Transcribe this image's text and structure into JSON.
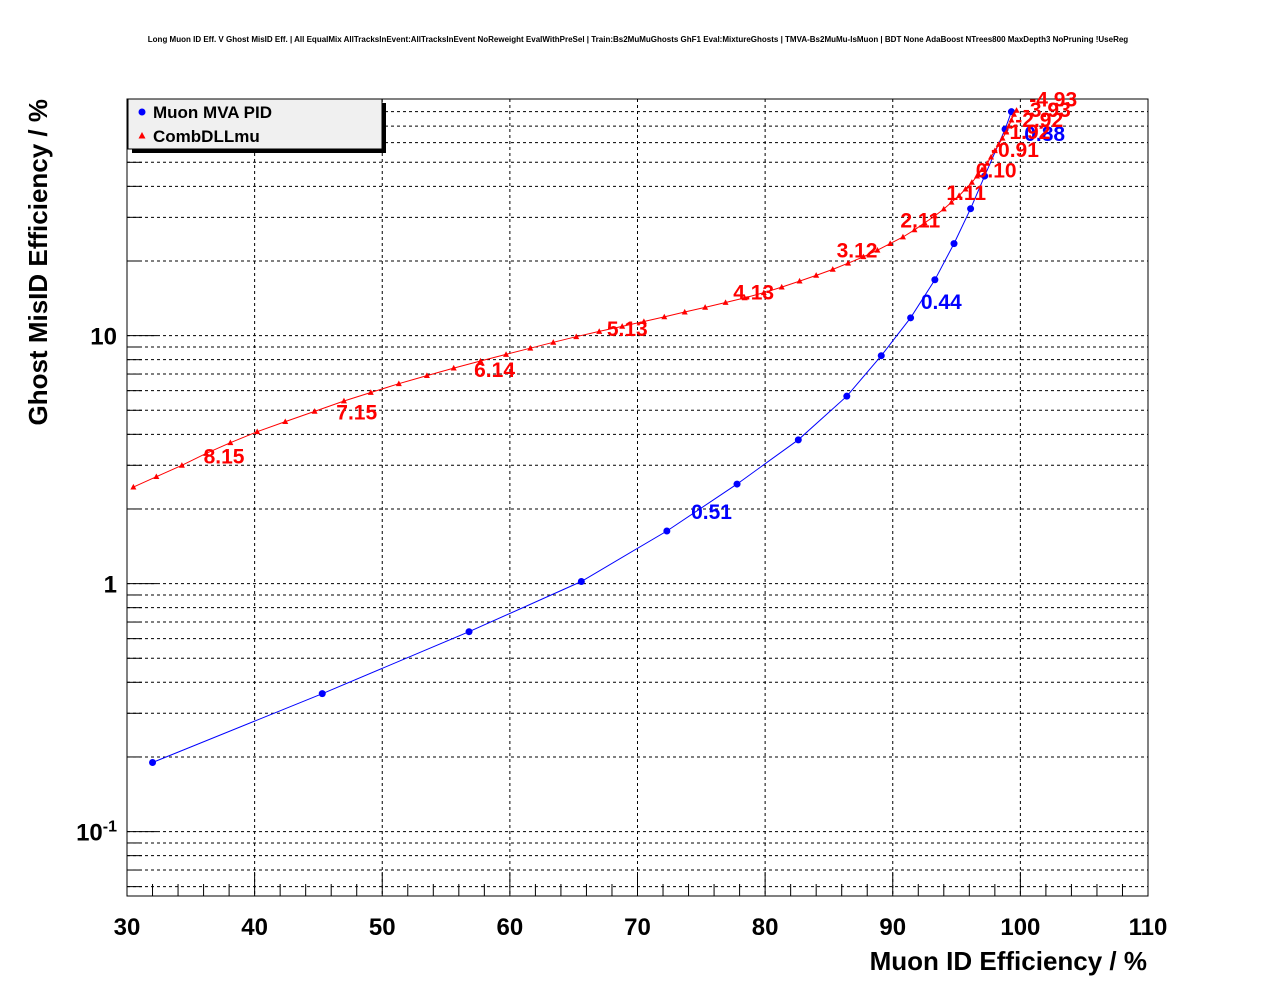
{
  "chart_data": {
    "type": "line",
    "title": "Long Muon ID Eff. V Ghost MisID Eff. | All EqualMix AllTracksInEvent:AllTracksInEvent NoReweight EvalWithPreSel | Train:Bs2MuMuGhosts GhF1 Eval:MixtureGhosts | TMVA-Bs2MuMu-IsMuon | BDT None AdaBoost NTrees800 MaxDepth3 NoPruning !UseReg",
    "xlabel": "Muon ID Efficiency / %",
    "ylabel": "Ghost MisID Efficiency / %",
    "xlim": [
      30,
      110
    ],
    "ylim": [
      0.055,
      90
    ],
    "yscale": "log",
    "grid": true,
    "legend_position": "top-left",
    "x_ticks": [
      "30",
      "40",
      "50",
      "60",
      "70",
      "80",
      "90",
      "100",
      "110"
    ],
    "y_ticks": [
      {
        "value": 0.1,
        "base": "10",
        "exp": "-1"
      },
      {
        "value": 1,
        "base": "1",
        "exp": ""
      },
      {
        "value": 10,
        "base": "10",
        "exp": ""
      }
    ],
    "series": [
      {
        "name": "Muon MVA PID",
        "color": "#0000ff",
        "marker": "circle",
        "points": [
          [
            32.0,
            0.19
          ],
          [
            45.3,
            0.36
          ],
          [
            56.8,
            0.64
          ],
          [
            65.6,
            1.02
          ],
          [
            72.3,
            1.63
          ],
          [
            77.8,
            2.52
          ],
          [
            82.6,
            3.8
          ],
          [
            86.4,
            5.7
          ],
          [
            89.1,
            8.3
          ],
          [
            91.4,
            11.8
          ],
          [
            93.3,
            16.8
          ],
          [
            94.8,
            23.5
          ],
          [
            96.1,
            32.5
          ],
          [
            97.2,
            44.0
          ],
          [
            98.8,
            68.0
          ],
          [
            99.3,
            80.0
          ]
        ],
        "labels": [
          {
            "text": "0.51",
            "x": 74.2,
            "y": 1.82
          },
          {
            "text": "0.44",
            "x": 92.2,
            "y": 12.8
          },
          {
            "text": "0.88",
            "x": 100.3,
            "y": 61.0
          }
        ]
      },
      {
        "name": "CombDLLmu",
        "color": "#ff0000",
        "marker": "triangle",
        "points": [
          [
            30.5,
            2.45
          ],
          [
            32.3,
            2.7
          ],
          [
            34.3,
            3.0
          ],
          [
            36.2,
            3.35
          ],
          [
            38.1,
            3.7
          ],
          [
            40.2,
            4.1
          ],
          [
            42.4,
            4.5
          ],
          [
            44.7,
            4.95
          ],
          [
            47.0,
            5.45
          ],
          [
            49.1,
            5.9
          ],
          [
            51.3,
            6.4
          ],
          [
            53.5,
            6.9
          ],
          [
            55.6,
            7.4
          ],
          [
            57.7,
            7.9
          ],
          [
            59.7,
            8.4
          ],
          [
            61.6,
            8.9
          ],
          [
            63.4,
            9.4
          ],
          [
            65.2,
            9.9
          ],
          [
            67.0,
            10.4
          ],
          [
            68.8,
            10.9
          ],
          [
            70.5,
            11.4
          ],
          [
            72.1,
            11.9
          ],
          [
            73.7,
            12.45
          ],
          [
            75.3,
            13.0
          ],
          [
            76.9,
            13.6
          ],
          [
            78.4,
            14.2
          ],
          [
            79.9,
            14.9
          ],
          [
            81.3,
            15.7
          ],
          [
            82.7,
            16.6
          ],
          [
            84.0,
            17.5
          ],
          [
            85.3,
            18.5
          ],
          [
            86.5,
            19.6
          ],
          [
            87.7,
            20.8
          ],
          [
            88.8,
            22.1
          ],
          [
            89.8,
            23.5
          ],
          [
            90.8,
            25.0
          ],
          [
            91.7,
            26.7
          ],
          [
            92.5,
            28.5
          ],
          [
            93.3,
            30.4
          ],
          [
            94.0,
            32.4
          ],
          [
            94.6,
            34.5
          ],
          [
            95.2,
            36.7
          ],
          [
            95.7,
            39.0
          ],
          [
            96.2,
            41.5
          ],
          [
            96.6,
            44.0
          ],
          [
            97.0,
            46.7
          ],
          [
            97.4,
            49.5
          ],
          [
            97.7,
            52.5
          ],
          [
            98.0,
            55.7
          ],
          [
            98.3,
            59.0
          ],
          [
            98.6,
            62.5
          ],
          [
            98.9,
            66.2
          ],
          [
            99.1,
            70.0
          ],
          [
            99.3,
            74.0
          ],
          [
            99.5,
            78.0
          ],
          [
            99.7,
            81.0
          ]
        ],
        "labels": [
          {
            "text": "8.15",
            "x": 36.0,
            "y": 3.05
          },
          {
            "text": "7.15",
            "x": 46.4,
            "y": 4.58
          },
          {
            "text": "6.14",
            "x": 57.2,
            "y": 6.8
          },
          {
            "text": "5.13",
            "x": 67.6,
            "y": 9.95
          },
          {
            "text": "4.13",
            "x": 77.5,
            "y": 14.0
          },
          {
            "text": "3.12",
            "x": 85.6,
            "y": 20.7
          },
          {
            "text": "2.11",
            "x": 90.6,
            "y": 27.3
          },
          {
            "text": "1.11",
            "x": 94.2,
            "y": 35.3
          },
          {
            "text": "0.10",
            "x": 96.5,
            "y": 43.5
          },
          {
            "text": "-0.91",
            "x": 97.7,
            "y": 52.5
          },
          {
            "text": "-1.92",
            "x": 98.6,
            "y": 62.0
          },
          {
            "text": "-2.92",
            "x": 99.6,
            "y": 69.5
          },
          {
            "text": "-3.93",
            "x": 100.2,
            "y": 76.0
          },
          {
            "text": "-4.93",
            "x": 100.7,
            "y": 84.0
          }
        ]
      }
    ]
  }
}
